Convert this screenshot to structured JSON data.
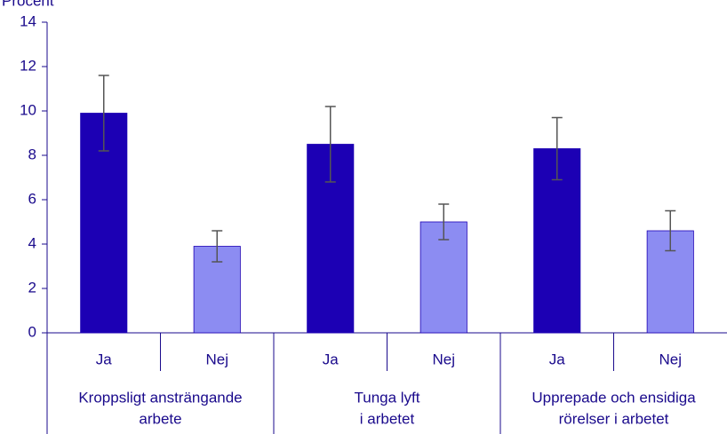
{
  "chart_data": {
    "type": "bar",
    "y_axis_label": "Procent",
    "categories": [
      "Ja",
      "Nej",
      "Ja",
      "Nej",
      "Ja",
      "Nej"
    ],
    "groups": [
      {
        "label": [
          "Kroppsligt ansträngande",
          "arbete"
        ],
        "size": 2
      },
      {
        "label": [
          "Tunga lyft",
          "i arbetet"
        ],
        "size": 2
      },
      {
        "label": [
          "Upprepade och ensidiga",
          "rörelser i arbetet"
        ],
        "size": 2
      }
    ],
    "values": [
      9.9,
      3.9,
      8.5,
      5.0,
      8.3,
      4.6
    ],
    "errors": [
      1.7,
      0.7,
      1.7,
      0.8,
      1.4,
      0.9
    ],
    "colors": [
      "#1c00b4",
      "#8c8cf2",
      "#1c00b4",
      "#8c8cf2",
      "#1c00b4",
      "#8c8cf2"
    ],
    "ylim": [
      0,
      14
    ],
    "yticks": [
      0,
      2,
      4,
      6,
      8,
      10,
      12,
      14
    ],
    "grid": false
  }
}
